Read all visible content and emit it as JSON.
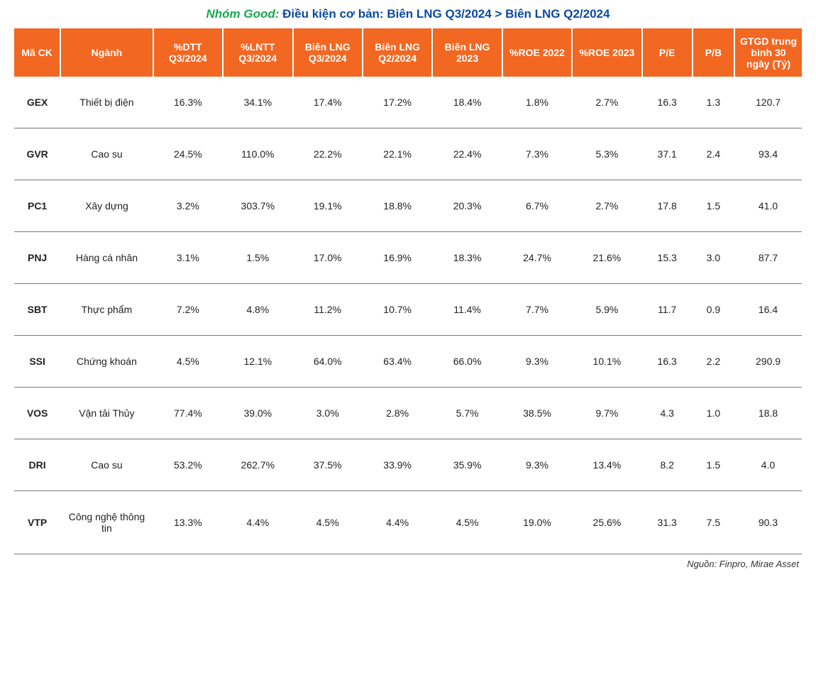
{
  "title": {
    "prefix": "Nhóm Good:",
    "rest": " Điều kiện cơ bản: Biên LNG Q3/2024 > Biên LNG Q2/2024",
    "prefix_color": "#1aa84f",
    "rest_color": "#0b4a9e"
  },
  "table": {
    "header_bg": "#f26722",
    "header_fg": "#ffffff",
    "row_border": "#777777",
    "columns": [
      "Mã CK",
      "Ngành",
      "%DTT Q3/2024",
      "%LNTT Q3/2024",
      "Biên LNG Q3/2024",
      "Biên LNG Q2/2024",
      "Biên LNG 2023",
      "%ROE 2022",
      "%ROE 2023",
      "P/E",
      "P/B",
      "GTGD trung bình 30 ngày (Tỷ)"
    ],
    "rows": [
      {
        "ticker": "GEX",
        "industry": "Thiết bị điện",
        "dtt": "16.3%",
        "lntt": "34.1%",
        "lng_q3": "17.4%",
        "lng_q2": "17.2%",
        "lng_2023": "18.4%",
        "roe22": "1.8%",
        "roe23": "2.7%",
        "pe": "16.3",
        "pb": "1.3",
        "gtgd": "120.7"
      },
      {
        "ticker": "GVR",
        "industry": "Cao su",
        "dtt": "24.5%",
        "lntt": "110.0%",
        "lng_q3": "22.2%",
        "lng_q2": "22.1%",
        "lng_2023": "22.4%",
        "roe22": "7.3%",
        "roe23": "5.3%",
        "pe": "37.1",
        "pb": "2.4",
        "gtgd": "93.4"
      },
      {
        "ticker": "PC1",
        "industry": "Xây dựng",
        "dtt": "3.2%",
        "lntt": "303.7%",
        "lng_q3": "19.1%",
        "lng_q2": "18.8%",
        "lng_2023": "20.3%",
        "roe22": "6.7%",
        "roe23": "2.7%",
        "pe": "17.8",
        "pb": "1.5",
        "gtgd": "41.0"
      },
      {
        "ticker": "PNJ",
        "industry": "Hàng cá nhân",
        "dtt": "3.1%",
        "lntt": "1.5%",
        "lng_q3": "17.0%",
        "lng_q2": "16.9%",
        "lng_2023": "18.3%",
        "roe22": "24.7%",
        "roe23": "21.6%",
        "pe": "15.3",
        "pb": "3.0",
        "gtgd": "87.7"
      },
      {
        "ticker": "SBT",
        "industry": "Thực phẩm",
        "dtt": "7.2%",
        "lntt": "4.8%",
        "lng_q3": "11.2%",
        "lng_q2": "10.7%",
        "lng_2023": "11.4%",
        "roe22": "7.7%",
        "roe23": "5.9%",
        "pe": "11.7",
        "pb": "0.9",
        "gtgd": "16.4"
      },
      {
        "ticker": "SSI",
        "industry": "Chứng khoán",
        "dtt": "4.5%",
        "lntt": "12.1%",
        "lng_q3": "64.0%",
        "lng_q2": "63.4%",
        "lng_2023": "66.0%",
        "roe22": "9.3%",
        "roe23": "10.1%",
        "pe": "16.3",
        "pb": "2.2",
        "gtgd": "290.9"
      },
      {
        "ticker": "VOS",
        "industry": "Vận tải Thủy",
        "dtt": "77.4%",
        "lntt": "39.0%",
        "lng_q3": "3.0%",
        "lng_q2": "2.8%",
        "lng_2023": "5.7%",
        "roe22": "38.5%",
        "roe23": "9.7%",
        "pe": "4.3",
        "pb": "1.0",
        "gtgd": "18.8"
      },
      {
        "ticker": "DRI",
        "industry": "Cao su",
        "dtt": "53.2%",
        "lntt": "262.7%",
        "lng_q3": "37.5%",
        "lng_q2": "33.9%",
        "lng_2023": "35.9%",
        "roe22": "9.3%",
        "roe23": "13.4%",
        "pe": "8.2",
        "pb": "1.5",
        "gtgd": "4.0"
      },
      {
        "ticker": "VTP",
        "industry": "Công nghệ thông tin",
        "dtt": "13.3%",
        "lntt": "4.4%",
        "lng_q3": "4.5%",
        "lng_q2": "4.4%",
        "lng_2023": "4.5%",
        "roe22": "19.0%",
        "roe23": "25.6%",
        "pe": "31.3",
        "pb": "7.5",
        "gtgd": "90.3"
      }
    ]
  },
  "source": "Nguồn: Finpro, Mirae Asset"
}
